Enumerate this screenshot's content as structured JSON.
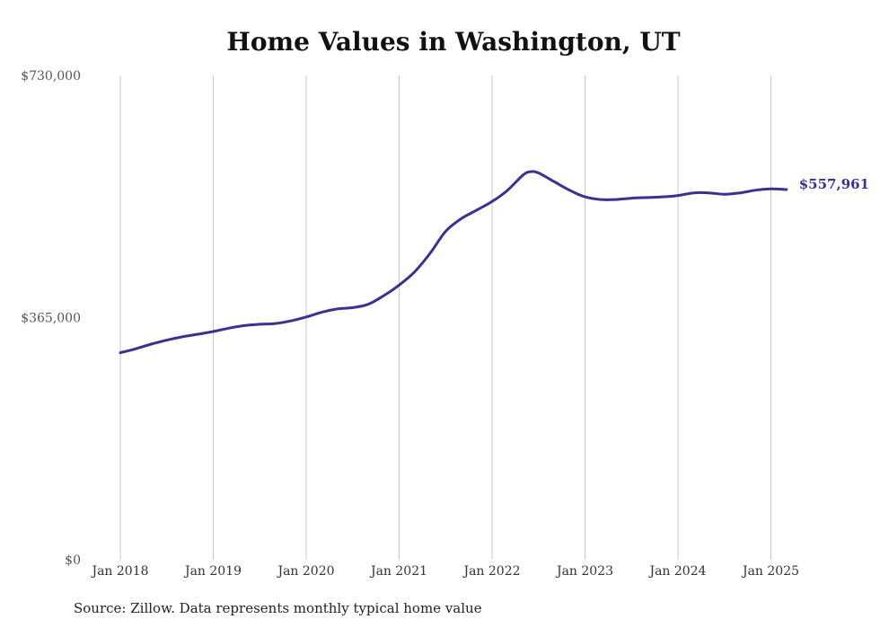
{
  "chart_data": {
    "type": "line",
    "title": "Home Values in Washington, UT",
    "source": "Source: Zillow. Data represents monthly typical home value",
    "ylim": [
      0,
      730000
    ],
    "y_ticks": [
      "$0",
      "$365,000",
      "$730,000"
    ],
    "y_tick_values": [
      0,
      365000,
      730000
    ],
    "x_ticks": [
      "Jan 2018",
      "Jan 2019",
      "Jan 2020",
      "Jan 2021",
      "Jan 2022",
      "Jan 2023",
      "Jan 2024",
      "Jan 2025"
    ],
    "grid": "vertical",
    "end_label": "$557,961",
    "series": [
      {
        "color": "#3b3192",
        "points": [
          [
            "2018-01",
            312000
          ],
          [
            "2018-03",
            318000
          ],
          [
            "2018-05",
            325000
          ],
          [
            "2018-07",
            331000
          ],
          [
            "2018-09",
            336000
          ],
          [
            "2018-11",
            340000
          ],
          [
            "2019-01",
            344000
          ],
          [
            "2019-03",
            349000
          ],
          [
            "2019-05",
            353000
          ],
          [
            "2019-07",
            355000
          ],
          [
            "2019-09",
            356000
          ],
          [
            "2019-11",
            360000
          ],
          [
            "2020-01",
            366000
          ],
          [
            "2020-03",
            373000
          ],
          [
            "2020-05",
            378000
          ],
          [
            "2020-07",
            380000
          ],
          [
            "2020-09",
            385000
          ],
          [
            "2020-11",
            398000
          ],
          [
            "2021-01",
            414000
          ],
          [
            "2021-03",
            434000
          ],
          [
            "2021-05",
            462000
          ],
          [
            "2021-07",
            495000
          ],
          [
            "2021-09",
            514000
          ],
          [
            "2021-11",
            527000
          ],
          [
            "2022-01",
            540000
          ],
          [
            "2022-03",
            557000
          ],
          [
            "2022-05",
            580000
          ],
          [
            "2022-06",
            585000
          ],
          [
            "2022-07",
            583000
          ],
          [
            "2022-09",
            570000
          ],
          [
            "2022-11",
            557000
          ],
          [
            "2023-01",
            547000
          ],
          [
            "2023-03",
            543000
          ],
          [
            "2023-05",
            543000
          ],
          [
            "2023-07",
            545000
          ],
          [
            "2023-09",
            546000
          ],
          [
            "2023-11",
            547000
          ],
          [
            "2024-01",
            549000
          ],
          [
            "2024-03",
            553000
          ],
          [
            "2024-05",
            553000
          ],
          [
            "2024-07",
            551000
          ],
          [
            "2024-09",
            553000
          ],
          [
            "2024-11",
            557000
          ],
          [
            "2025-01",
            559000
          ],
          [
            "2025-03",
            557961
          ]
        ]
      }
    ]
  }
}
